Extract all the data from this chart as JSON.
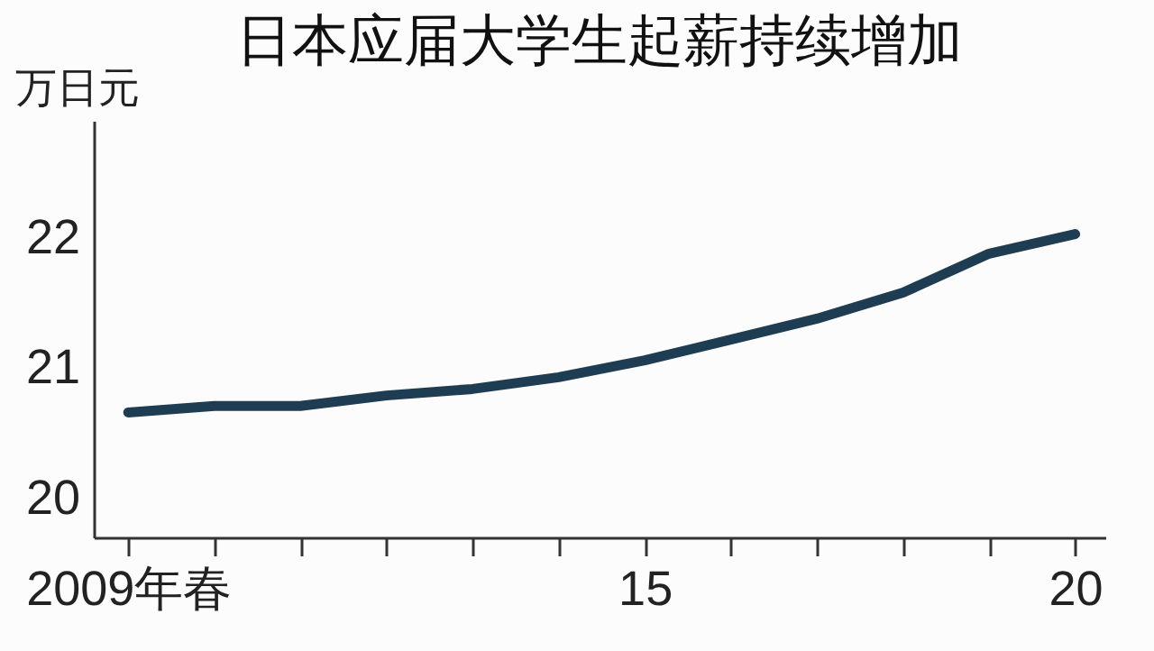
{
  "chart_data": {
    "type": "line",
    "title": "日本应届大学生起薪持续增加",
    "ylabel": "万日元",
    "x": [
      2009,
      2010,
      2011,
      2012,
      2013,
      2014,
      2015,
      2016,
      2017,
      2018,
      2019,
      2020
    ],
    "series": [
      {
        "color": "#1f3d52",
        "values": [
          20.66,
          20.71,
          20.71,
          20.79,
          20.84,
          20.93,
          21.06,
          21.22,
          21.38,
          21.58,
          21.88,
          22.03
        ]
      }
    ],
    "xlim": [
      2008.6,
      2020.35
    ],
    "xticks": [
      {
        "value": 2009,
        "label": "2009年春"
      },
      {
        "value": 2010,
        "label": null
      },
      {
        "value": 2011,
        "label": null
      },
      {
        "value": 2012,
        "label": null
      },
      {
        "value": 2013,
        "label": null
      },
      {
        "value": 2014,
        "label": null
      },
      {
        "value": 2015,
        "label": "15"
      },
      {
        "value": 2016,
        "label": null
      },
      {
        "value": 2017,
        "label": null
      },
      {
        "value": 2018,
        "label": null
      },
      {
        "value": 2019,
        "label": null
      },
      {
        "value": 2020,
        "label": "20"
      }
    ],
    "ylim": [
      19.7,
      22.9
    ],
    "yticks": [
      20,
      21,
      22
    ],
    "grid": false,
    "marker": "none",
    "line_style": "solid"
  }
}
